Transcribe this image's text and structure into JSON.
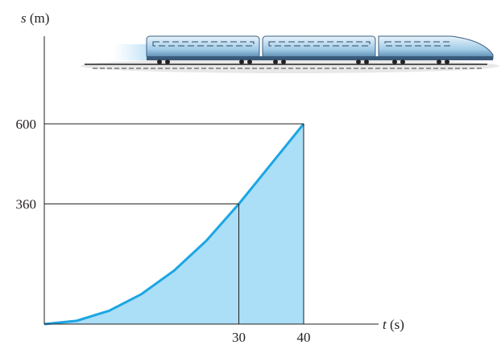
{
  "chart_data": {
    "type": "area",
    "y_label_var": "s",
    "y_label_unit": "(m)",
    "x_label_var": "t",
    "x_label_unit": "(s)",
    "x": [
      0,
      5,
      10,
      15,
      20,
      25,
      30,
      35,
      40
    ],
    "values": [
      0,
      10,
      40,
      90,
      160,
      250,
      360,
      480,
      600
    ],
    "line_color": "#1ba6e3",
    "fill_color": "#abdef7",
    "xlim": [
      0,
      52
    ],
    "ylim": [
      0,
      860
    ],
    "xticks": [
      30,
      40
    ],
    "yticks": [
      360,
      600
    ]
  }
}
